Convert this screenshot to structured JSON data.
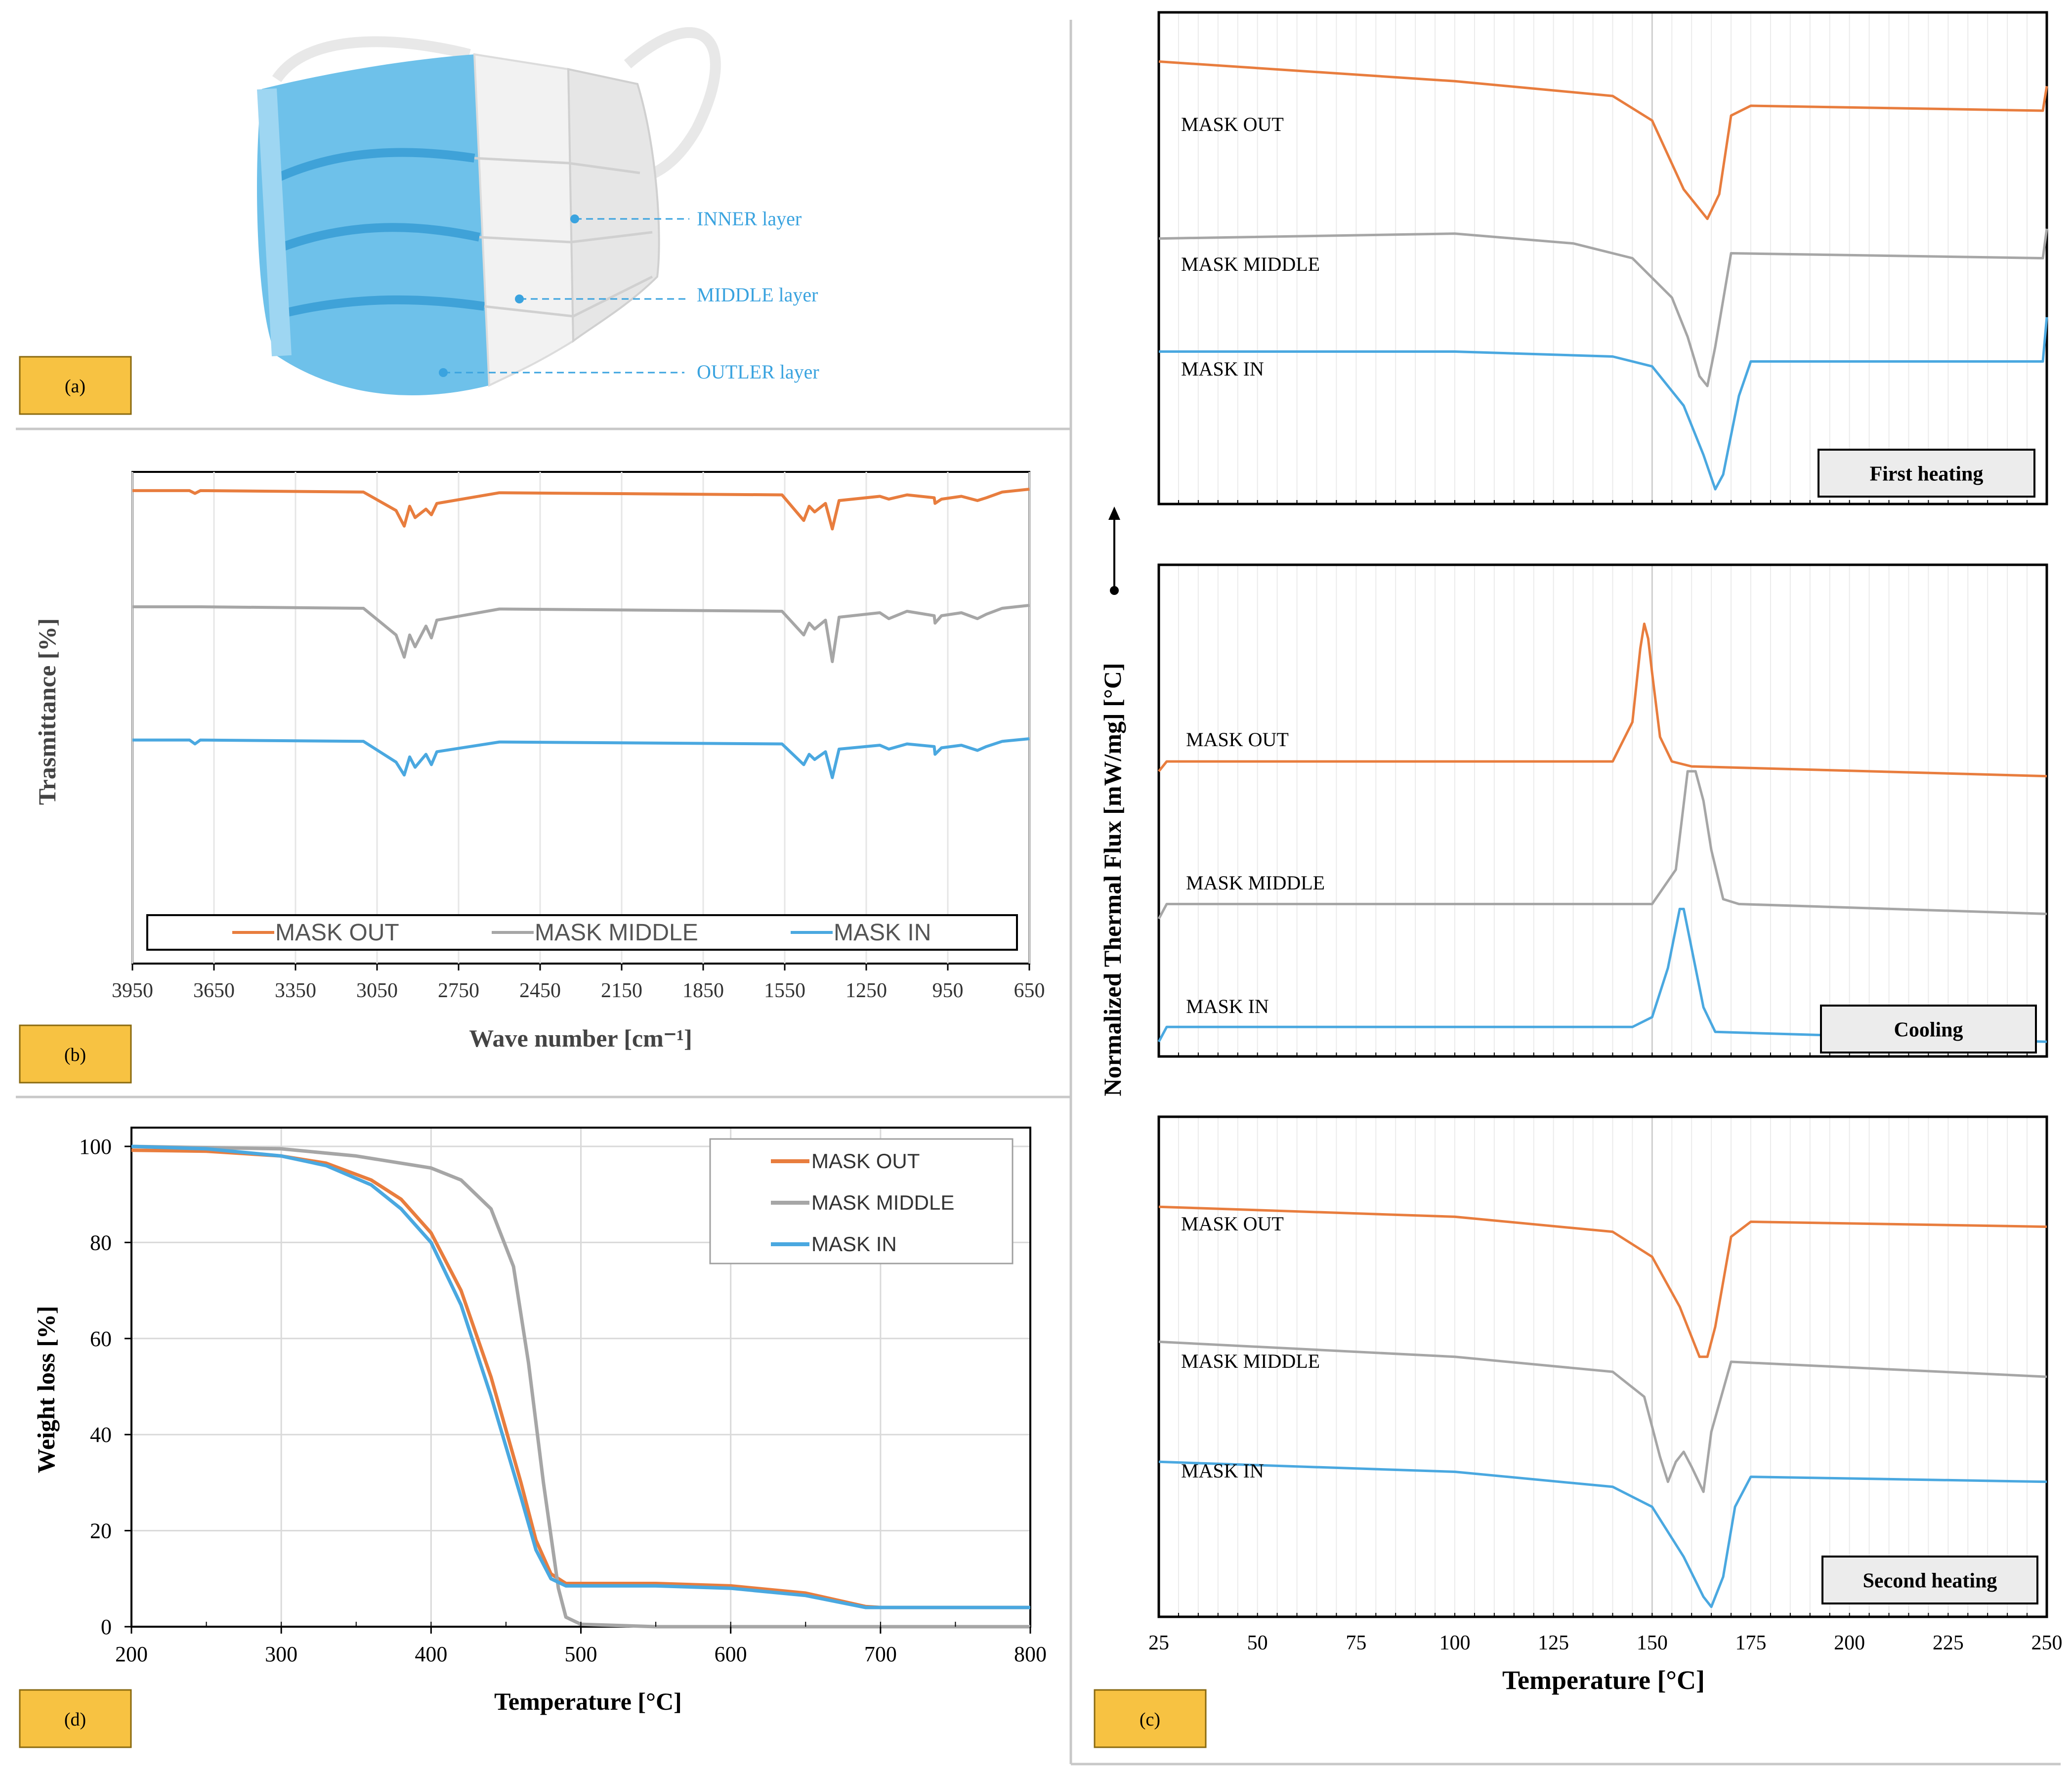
{
  "colors": {
    "out": "#E87D3E",
    "middle": "#A6A6A6",
    "in": "#4AA8E0",
    "label_box": "#F7C242",
    "mask_text": "#3AA3DF"
  },
  "panel_a": {
    "label": "(a)",
    "layers": [
      "INNER layer",
      "MIDDLE layer",
      "OUTLER layer"
    ]
  },
  "panel_labels": {
    "b": "(b)",
    "c": "(c)",
    "d": "(d)"
  },
  "chart_data": [
    {
      "id": "ftir",
      "type": "line",
      "ylabel": "Trasmittance [%]",
      "xlabel": "Wave number [cm⁻¹]",
      "xlim": [
        3950,
        650
      ],
      "xticks": [
        3950,
        3650,
        3350,
        3050,
        2750,
        2450,
        2150,
        1850,
        1550,
        1250,
        950,
        650
      ],
      "legend": [
        "MASK OUT",
        "MASK MIDDLE",
        "MASK IN"
      ],
      "legend_position": "bottom",
      "series": [
        {
          "name": "MASK OUT",
          "x": [
            3950,
            3740,
            3720,
            3700,
            3100,
            2980,
            2950,
            2930,
            2910,
            2870,
            2850,
            2830,
            2600,
            1560,
            1480,
            1460,
            1440,
            1400,
            1375,
            1350,
            1200,
            1167,
            1100,
            1000,
            997,
            973,
            900,
            841,
            808,
            750,
            650
          ],
          "y": [
            99,
            99,
            97,
            99,
            98,
            85,
            74,
            88,
            80,
            86,
            82,
            90,
            97.5,
            96,
            78,
            88,
            84,
            90,
            72,
            92,
            95,
            93,
            96,
            94,
            90,
            93,
            95,
            92,
            94,
            98,
            100
          ]
        },
        {
          "name": "MASK MIDDLE",
          "x": [
            3950,
            3700,
            3100,
            2980,
            2950,
            2930,
            2910,
            2870,
            2850,
            2830,
            2600,
            1560,
            1480,
            1460,
            1440,
            1400,
            1375,
            1350,
            1200,
            1167,
            1100,
            1000,
            997,
            973,
            900,
            841,
            808,
            750,
            650
          ],
          "y": [
            99,
            99,
            98,
            80,
            65,
            80,
            72,
            86,
            78,
            90,
            97.5,
            96,
            80,
            88,
            84,
            90,
            62,
            92,
            95,
            91,
            96,
            93,
            88,
            93,
            95,
            91,
            94,
            98,
            100
          ]
        },
        {
          "name": "MASK IN",
          "x": [
            3950,
            3740,
            3720,
            3700,
            3100,
            2980,
            2950,
            2930,
            2910,
            2870,
            2850,
            2830,
            2600,
            1560,
            1480,
            1460,
            1440,
            1400,
            1375,
            1350,
            1200,
            1167,
            1100,
            1000,
            997,
            973,
            900,
            841,
            808,
            750,
            650
          ],
          "y": [
            99,
            99,
            96,
            99,
            98,
            82,
            72,
            86,
            78,
            88,
            80,
            90,
            97.5,
            96,
            80,
            88,
            84,
            90,
            70,
            92,
            95,
            92,
            96,
            94,
            88,
            93,
            95,
            91,
            94,
            98,
            100
          ]
        }
      ]
    },
    {
      "id": "tga",
      "type": "line",
      "xlabel": "Temperature [°C]",
      "ylabel": "Weight loss [%]",
      "xlim": [
        200,
        800
      ],
      "ylim": [
        0,
        100
      ],
      "xticks": [
        200,
        300,
        400,
        500,
        600,
        700,
        800
      ],
      "yticks": [
        0,
        20,
        40,
        60,
        80,
        100
      ],
      "grid": true,
      "legend": [
        "MASK OUT",
        "MASK MIDDLE",
        "MASK IN"
      ],
      "legend_position": "top-right",
      "series": [
        {
          "name": "MASK OUT",
          "x": [
            200,
            250,
            300,
            330,
            360,
            380,
            400,
            420,
            440,
            460,
            470,
            480,
            490,
            500,
            550,
            600,
            650,
            690,
            700,
            800
          ],
          "y": [
            99.2,
            99,
            98,
            96.5,
            93,
            89,
            82,
            70,
            52,
            30,
            18,
            11,
            9,
            9,
            9,
            8.5,
            7,
            4.2,
            4,
            4
          ]
        },
        {
          "name": "MASK MIDDLE",
          "x": [
            200,
            300,
            350,
            400,
            420,
            440,
            455,
            465,
            475,
            485,
            490,
            500,
            550,
            800
          ],
          "y": [
            100,
            99.5,
            98,
            95.5,
            93,
            87,
            75,
            55,
            30,
            8,
            2,
            0.5,
            0,
            0
          ]
        },
        {
          "name": "MASK IN",
          "x": [
            200,
            250,
            300,
            330,
            360,
            380,
            400,
            420,
            440,
            460,
            470,
            480,
            490,
            500,
            550,
            600,
            650,
            690,
            700,
            800
          ],
          "y": [
            100,
            99.5,
            98,
            96,
            92,
            87,
            80,
            67,
            48,
            27,
            16,
            10,
            8.5,
            8.5,
            8.5,
            8,
            6.5,
            4,
            4,
            4
          ]
        }
      ]
    },
    {
      "id": "dsc",
      "type": "line",
      "ylabel": "Normalized Thermal Flux [mW/mg] [°C]",
      "xlabel": "Temperature [°C]",
      "xlim": [
        25,
        250
      ],
      "xticks": [
        25,
        50,
        75,
        100,
        125,
        150,
        175,
        200,
        225,
        250
      ],
      "subplots": [
        {
          "title": "First heating",
          "series": [
            {
              "name": "MASK OUT",
              "x": [
                25,
                100,
                140,
                150,
                158,
                164,
                167,
                170,
                175,
                249,
                250
              ],
              "y": [
                0.9,
                0.86,
                0.83,
                0.78,
                0.64,
                0.58,
                0.63,
                0.79,
                0.81,
                0.8,
                0.85
              ]
            },
            {
              "name": "MASK MIDDLE",
              "x": [
                25,
                100,
                130,
                145,
                155,
                159,
                162,
                164,
                166,
                170,
                249,
                250
              ],
              "y": [
                0.54,
                0.55,
                0.53,
                0.5,
                0.42,
                0.34,
                0.26,
                0.24,
                0.32,
                0.51,
                0.5,
                0.56
              ]
            },
            {
              "name": "MASK IN",
              "x": [
                25,
                100,
                140,
                150,
                158,
                163,
                166,
                168,
                172,
                175,
                249,
                250
              ],
              "y": [
                0.31,
                0.31,
                0.3,
                0.28,
                0.2,
                0.1,
                0.03,
                0.06,
                0.22,
                0.29,
                0.29,
                0.38
              ]
            }
          ]
        },
        {
          "title": "Cooling",
          "series": [
            {
              "name": "MASK OUT",
              "x": [
                25,
                27,
                140,
                145,
                147,
                148,
                149,
                150,
                152,
                155,
                160,
                250
              ],
              "y": [
                0.58,
                0.6,
                0.6,
                0.68,
                0.83,
                0.88,
                0.85,
                0.78,
                0.65,
                0.6,
                0.59,
                0.57
              ]
            },
            {
              "name": "MASK MIDDLE",
              "x": [
                25,
                27,
                150,
                156,
                159,
                161,
                163,
                165,
                168,
                172,
                250
              ],
              "y": [
                0.28,
                0.31,
                0.31,
                0.38,
                0.58,
                0.58,
                0.52,
                0.42,
                0.32,
                0.31,
                0.29
              ]
            },
            {
              "name": "MASK IN",
              "x": [
                25,
                27,
                145,
                150,
                154,
                157,
                158,
                160,
                163,
                166,
                250
              ],
              "y": [
                0.03,
                0.06,
                0.06,
                0.08,
                0.18,
                0.3,
                0.3,
                0.22,
                0.1,
                0.05,
                0.03
              ]
            }
          ]
        },
        {
          "title": "Second heating",
          "series": [
            {
              "name": "MASK OUT",
              "x": [
                25,
                100,
                140,
                150,
                157,
                162,
                164,
                166,
                170,
                175,
                250
              ],
              "y": [
                0.82,
                0.8,
                0.77,
                0.72,
                0.62,
                0.52,
                0.52,
                0.58,
                0.76,
                0.79,
                0.78
              ]
            },
            {
              "name": "MASK MIDDLE",
              "x": [
                25,
                100,
                140,
                148,
                152,
                154,
                156,
                158,
                160,
                163,
                165,
                170,
                250
              ],
              "y": [
                0.55,
                0.52,
                0.49,
                0.44,
                0.32,
                0.27,
                0.31,
                0.33,
                0.3,
                0.25,
                0.37,
                0.51,
                0.48
              ]
            },
            {
              "name": "MASK IN",
              "x": [
                25,
                100,
                140,
                150,
                158,
                163,
                165,
                168,
                171,
                175,
                250
              ],
              "y": [
                0.31,
                0.29,
                0.26,
                0.22,
                0.12,
                0.04,
                0.02,
                0.08,
                0.22,
                0.28,
                0.27
              ]
            }
          ]
        }
      ]
    }
  ]
}
